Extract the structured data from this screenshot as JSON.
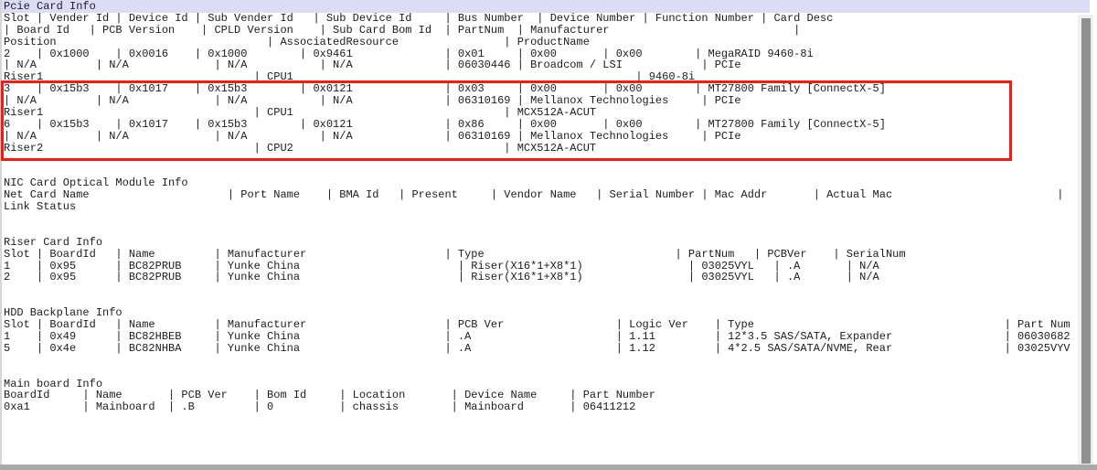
{
  "window": {
    "type": "terminal-console",
    "selected_line_index": 0,
    "colors": {
      "background": "#ffffff",
      "text": "#1c1c1c",
      "selection_background": "#dbdcf5",
      "selection_text": "#191933",
      "annotation_red": "#f81a0e",
      "scrollbar_thumb": "#8f8f8f",
      "scrollbar_track": "#f0efed",
      "window_edge": "#a9a9a9"
    }
  },
  "console": {
    "lines": [
      "Pcie Card Info",
      "Slot | Vender Id | Device Id | Sub Vender Id   | Sub Device Id     | Bus Number  | Device Number | Function Number | Card Desc",
      "| Board Id   | PCB Version    | CPLD Version    | Sub Card Bom Id  | PartNum  | Manufacturer                            |",
      "Position                                | AssociatedResource                | ProductName",
      "2    | 0x1000    | 0x0016    | 0x1000        | 0x9461              | 0x01     | 0x00       | 0x00        | MegaRAID 9460-8i",
      "| N/A         | N/A             | N/A           | N/A              | 06030446 | Broadcom / LSI            | PCIe",
      "Riser1                                | CPU1                                                    | 9460-8i",
      "3    | 0x15b3    | 0x1017    | 0x15b3        | 0x0121              | 0x03     | 0x00       | 0x00        | MT27800 Family [ConnectX-5]",
      "| N/A         | N/A             | N/A           | N/A              | 06310169 | Mellanox Technologies     | PCIe",
      "Riser1                                | CPU1                                | MCX512A-ACUT",
      "6    | 0x15b3    | 0x1017    | 0x15b3        | 0x0121              | 0x86     | 0x00       | 0x00        | MT27800 Family [ConnectX-5]",
      "| N/A         | N/A             | N/A           | N/A              | 06310169 | Mellanox Technologies     | PCIe",
      "Riser2                                | CPU2                                | MCX512A-ACUT",
      "",
      "",
      "NIC Card Optical Module Info",
      "Net Card Name                     | Port Name    | BMA Id   | Present     | Vendor Name   | Serial Number | Mac Addr       | Actual Mac                         |",
      "Link Status",
      "",
      "",
      "Riser Card Info",
      "Slot | BoardId   | Name         | Manufacturer                     | Type                             | PartNum   | PCBVer    | SerialNum",
      "1    | 0x95      | BC82PRUB     | Yunke China                        | Riser(X16*1+X8*1)                | 03025VYL   | .A       | N/A",
      "2    | 0x95      | BC82PRUB     | Yunke China                        | Riser(X16*1+X8*1)                | 03025VYL   | .A       | N/A",
      "",
      "",
      "HDD Backplane Info",
      "Slot | BoardId   | Name         | Manufacturer                     | PCB Ver                 | Logic Ver    | Type                                      | Part Num",
      "1    | 0x49      | BC82HBEB     | Yunke China                      | .A                      | 1.11         | 12*3.5 SAS/SATA, Expander                 | 06030682",
      "5    | 0x4e      | BC82NHBA     | Yunke China                      | .A                      | 1.12         | 4*2.5 SAS/SATA/NVME, Rear                 | 03025VYV",
      "",
      "",
      "Main board Info",
      "BoardId     | Name       | PCB Ver    | Bom Id     | Location       | Device Name     | Part Number",
      "0xa1        | Mainboard  | .B         | 0          | chassis        | Mainboard       | 06411212"
    ]
  },
  "sections": [
    {
      "title": "Pcie Card Info",
      "columns": [
        "Slot",
        "Vender Id",
        "Device Id",
        "Sub Vender Id",
        "Sub Device Id",
        "Bus Number",
        "Device Number",
        "Function Number",
        "Card Desc",
        "Board Id",
        "PCB Version",
        "CPLD Version",
        "Sub Card Bom Id",
        "PartNum",
        "Manufacturer",
        "",
        "Position",
        "AssociatedResource",
        "ProductName"
      ],
      "rows": [
        [
          "2",
          "0x1000",
          "0x0016",
          "0x1000",
          "0x9461",
          "0x01",
          "0x00",
          "0x00",
          "MegaRAID 9460-8i",
          "N/A",
          "N/A",
          "N/A",
          "N/A",
          "06030446",
          "Broadcom / LSI",
          "PCIe",
          "Riser1",
          "CPU1",
          "9460-8i"
        ],
        [
          "3",
          "0x15b3",
          "0x1017",
          "0x15b3",
          "0x0121",
          "0x03",
          "0x00",
          "0x00",
          "MT27800 Family [ConnectX-5]",
          "N/A",
          "N/A",
          "N/A",
          "N/A",
          "06310169",
          "Mellanox Technologies",
          "PCIe",
          "Riser1",
          "CPU1",
          "MCX512A-ACUT"
        ],
        [
          "6",
          "0x15b3",
          "0x1017",
          "0x15b3",
          "0x0121",
          "0x86",
          "0x00",
          "0x00",
          "MT27800 Family [ConnectX-5]",
          "N/A",
          "N/A",
          "N/A",
          "N/A",
          "06310169",
          "Mellanox Technologies",
          "PCIe",
          "Riser2",
          "CPU2",
          "MCX512A-ACUT"
        ]
      ]
    },
    {
      "title": "NIC Card Optical Module Info",
      "columns": [
        "Net Card Name",
        "Port Name",
        "BMA Id",
        "Present",
        "Vendor Name",
        "Serial Number",
        "Mac Addr",
        "Actual Mac",
        "Link Status"
      ],
      "rows": []
    },
    {
      "title": "Riser Card Info",
      "columns": [
        "Slot",
        "BoardId",
        "Name",
        "Manufacturer",
        "Type",
        "PartNum",
        "PCBVer",
        "SerialNum"
      ],
      "rows": [
        [
          "1",
          "0x95",
          "BC82PRUB",
          "Yunke China",
          "Riser(X16*1+X8*1)",
          "03025VYL",
          ".A",
          "N/A"
        ],
        [
          "2",
          "0x95",
          "BC82PRUB",
          "Yunke China",
          "Riser(X16*1+X8*1)",
          "03025VYL",
          ".A",
          "N/A"
        ]
      ]
    },
    {
      "title": "HDD Backplane Info",
      "columns": [
        "Slot",
        "BoardId",
        "Name",
        "Manufacturer",
        "PCB Ver",
        "Logic Ver",
        "Type",
        "Part Num"
      ],
      "rows": [
        [
          "1",
          "0x49",
          "BC82HBEB",
          "Yunke China",
          ".A",
          "1.11",
          "12*3.5 SAS/SATA, Expander",
          "06030682"
        ],
        [
          "5",
          "0x4e",
          "BC82NHBA",
          "Yunke China",
          ".A",
          "1.12",
          "4*2.5 SAS/SATA/NVME, Rear",
          "03025VYV"
        ]
      ]
    },
    {
      "title": "Main board Info",
      "columns": [
        "BoardId",
        "Name",
        "PCB Ver",
        "Bom Id",
        "Location",
        "Device Name",
        "Part Number"
      ],
      "rows": [
        [
          "0xa1",
          "Mainboard",
          ".B",
          "0",
          "chassis",
          "Mainboard",
          "06411212"
        ]
      ]
    }
  ],
  "annotation": {
    "shape": "rectangle",
    "color": "#f81a0e",
    "purpose": "highlights the two Mellanox MT27800 ConnectX-5 PCIe card records"
  }
}
